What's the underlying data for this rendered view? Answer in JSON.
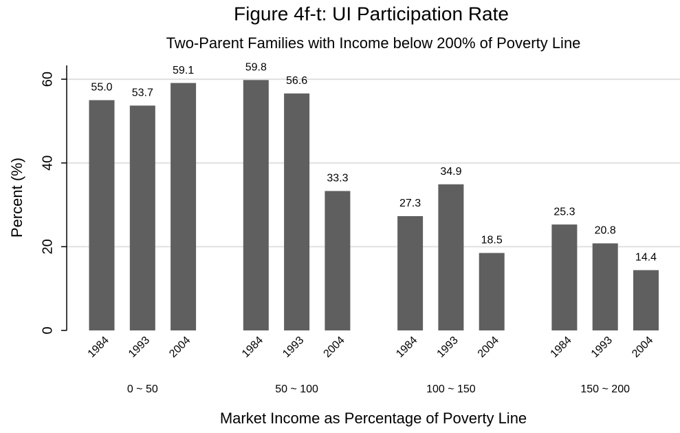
{
  "chart_data": {
    "type": "bar",
    "title": "Figure 4f-t: UI Participation Rate",
    "subtitle": "Two-Parent Families with Income below 200% of Poverty Line",
    "y_label": "Percent (%)",
    "x_label": "Market Income as Percentage of Poverty Line",
    "groups": [
      "0 ~ 50",
      "50 ~ 100",
      "100 ~ 150",
      "150 ~ 200"
    ],
    "categories": [
      "1984",
      "1993",
      "2004",
      "1984",
      "1993",
      "2004",
      "1984",
      "1993",
      "2004",
      "1984",
      "1993",
      "2004"
    ],
    "values": [
      55.0,
      53.7,
      59.1,
      59.8,
      56.6,
      33.3,
      27.3,
      34.9,
      18.5,
      25.3,
      20.8,
      14.4
    ],
    "value_labels": [
      "55.0",
      "53.7",
      "59.1",
      "59.8",
      "56.6",
      "33.3",
      "27.3",
      "34.9",
      "18.5",
      "25.3",
      "20.8",
      "14.4"
    ],
    "color": "#5f5f5f",
    "ylim": [
      0,
      63.3
    ],
    "yticks": [
      0,
      20,
      40,
      60
    ],
    "grid": true
  }
}
